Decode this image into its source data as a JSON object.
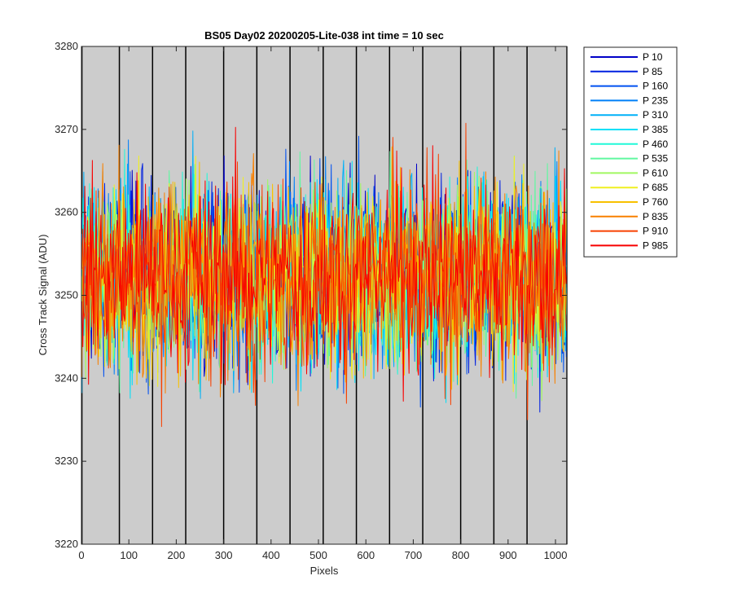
{
  "chart_data": {
    "type": "line",
    "title": "BS05 Day02 20200205-Lite-038 int time = 10 sec",
    "xlabel": "Pixels",
    "ylabel": "Cross Track Signal (ADU)",
    "xlim": [
      0,
      1024
    ],
    "ylim": [
      3220,
      3280
    ],
    "xticks": [
      0,
      100,
      200,
      300,
      400,
      500,
      600,
      700,
      800,
      900,
      1000
    ],
    "yticks": [
      3220,
      3230,
      3240,
      3250,
      3260,
      3270,
      3280
    ],
    "xtick_labels": [
      "0",
      "100",
      "200",
      "300",
      "400",
      "500",
      "600",
      "700",
      "800",
      "900",
      "1000"
    ],
    "ytick_labels": [
      "3220",
      "3230",
      "3240",
      "3250",
      "3260",
      "3270",
      "3280"
    ],
    "vertical_lines_x": [
      1,
      80,
      150,
      220,
      300,
      370,
      440,
      510,
      580,
      650,
      720,
      800,
      870,
      940,
      1024
    ],
    "background_color": "#cccccc",
    "legend_position": "outside-top-right",
    "series_mean": 3252.5,
    "series": [
      {
        "name": "P 10",
        "color": "#0000c8"
      },
      {
        "name": "P 85",
        "color": "#0020e0"
      },
      {
        "name": "P 160",
        "color": "#0050f0"
      },
      {
        "name": "P 235",
        "color": "#0080f8"
      },
      {
        "name": "P 310",
        "color": "#00b0f8"
      },
      {
        "name": "P 385",
        "color": "#00e0f8"
      },
      {
        "name": "P 460",
        "color": "#20f8d8"
      },
      {
        "name": "P 535",
        "color": "#60f8a0"
      },
      {
        "name": "P 610",
        "color": "#a0f860"
      },
      {
        "name": "P 685",
        "color": "#f0f020"
      },
      {
        "name": "P 760",
        "color": "#f8c000"
      },
      {
        "name": "P 835",
        "color": "#f88000"
      },
      {
        "name": "P 910",
        "color": "#f84000"
      },
      {
        "name": "P 985",
        "color": "#f80000"
      }
    ]
  }
}
